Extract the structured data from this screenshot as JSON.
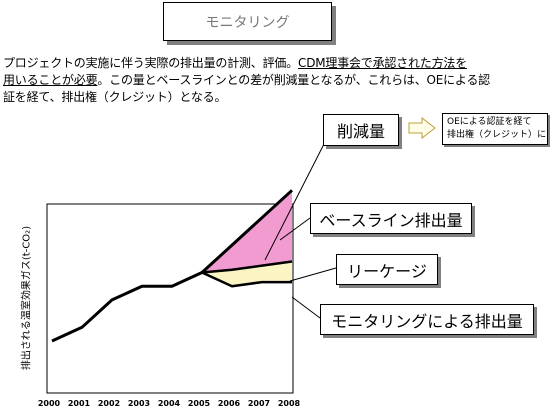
{
  "header": {
    "title": "モニタリング"
  },
  "intro": {
    "line1_plain": "プロジェクトの実施に伴う実際の排出量の計測、評価。",
    "line1_underlined": "CDM理事会で承認された方法を",
    "line2_underlined": "用いることが必要",
    "line2_plain": "。この量とベースラインとの差が削減量となるが、これらは、OEによる認",
    "line3": "証を経て、排出権（クレジット）となる。"
  },
  "callouts": {
    "reduction": "削減量",
    "baseline": "ベースライン排出量",
    "leakage": "リーケージ",
    "monitoring": "モニタリングによる排出量"
  },
  "note": {
    "line1": "OEによる認証を経て",
    "line2": "排出権（クレジット）に"
  },
  "colors": {
    "reduction_fill": "#f29bd0",
    "leakage_fill": "#fbf5c4",
    "line": "#000000"
  },
  "chart_data": {
    "type": "line",
    "ylabel": "排出される温室効果ガス(t-CO₂)",
    "categories": [
      "2000",
      "2001",
      "2002",
      "2003",
      "2004",
      "2005",
      "2006",
      "2007",
      "2008"
    ],
    "history": [
      0.0,
      0.1,
      0.3,
      0.4,
      0.4,
      0.5
    ],
    "baseline": [
      0.5,
      0.7,
      0.9,
      1.1
    ],
    "leakage_top": [
      0.5,
      0.52,
      0.55,
      0.58
    ],
    "monitoring": [
      0.5,
      0.4,
      0.43,
      0.43
    ]
  }
}
